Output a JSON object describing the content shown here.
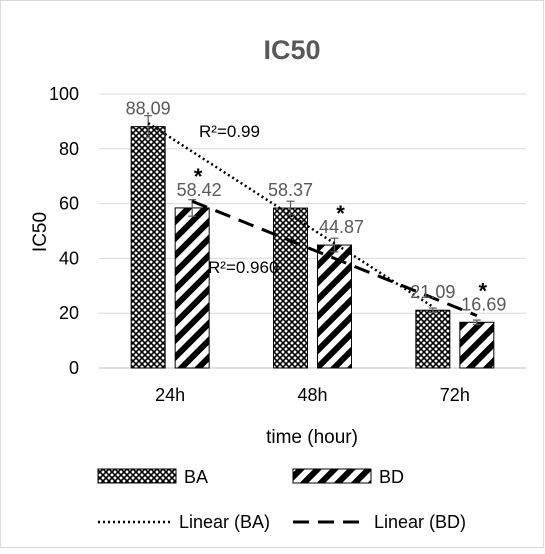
{
  "chart_data": {
    "type": "bar",
    "title": "IC50",
    "xlabel": "time (hour)",
    "ylabel": "IC50",
    "categories": [
      "24h",
      "48h",
      "72h"
    ],
    "ylim": [
      0,
      100
    ],
    "yticks": [
      "0",
      "20",
      "40",
      "60",
      "80",
      "100"
    ],
    "grid": true,
    "legend_position": "bottom",
    "series": [
      {
        "name": "BA",
        "values": [
          88.09,
          58.37,
          21.09
        ],
        "labels": [
          "88.09",
          "58.37",
          "21.09"
        ],
        "error": [
          4,
          2.5,
          0.8
        ],
        "pattern": "crosshatch",
        "significance": [
          "",
          "",
          ""
        ]
      },
      {
        "name": "BD",
        "values": [
          58.42,
          44.87,
          16.69
        ],
        "labels": [
          "58.42",
          "44.87",
          "16.69"
        ],
        "error": [
          3,
          2.5,
          0.8
        ],
        "pattern": "diagonal-stripes",
        "significance": [
          "*",
          "*",
          "*"
        ]
      }
    ],
    "trendlines": [
      {
        "name": "Linear (BA)",
        "style": "dotted",
        "r2_label": "R²=0.99"
      },
      {
        "name": "Linear (BD)",
        "style": "dashed",
        "r2_label": "R²=0.960"
      }
    ],
    "colors": {
      "text": "#404040",
      "label": "#595959",
      "grid": "#d9d9d9",
      "axis": "#bfbfbf",
      "mark": "#000000"
    }
  }
}
